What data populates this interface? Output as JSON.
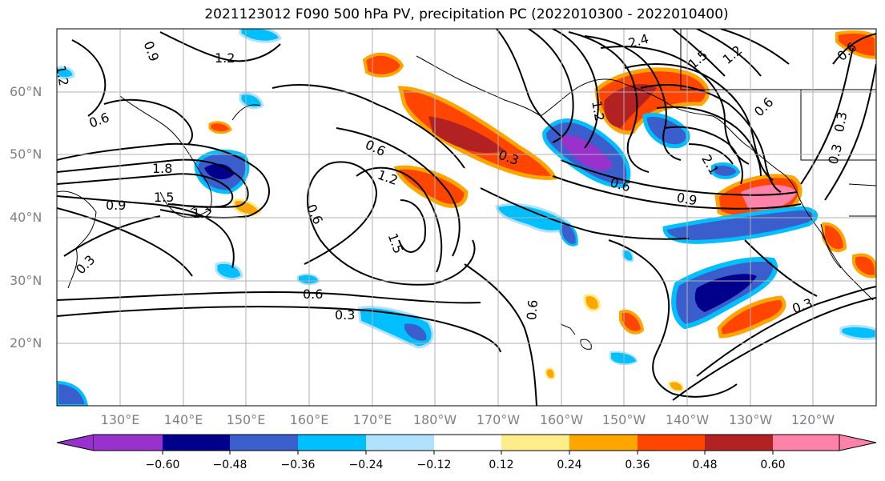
{
  "title": "2021123012 F090 500 hPa PV, precipitation PC (2022010300 - 2022010400)",
  "map": {
    "lat_labels": [
      "60°N",
      "50°N",
      "40°N",
      "30°N",
      "20°N"
    ],
    "lon_labels": [
      "130°E",
      "140°E",
      "150°E",
      "160°E",
      "170°E",
      "180°W",
      "170°W",
      "160°W",
      "150°W",
      "140°W",
      "130°W",
      "120°W"
    ],
    "contour_labels": [
      "1.2",
      "0.9",
      "1.2",
      "0.6",
      "1.8",
      "1.5",
      "1.2",
      "0.9",
      "0.6",
      "1.2",
      "1.5",
      "0.6",
      "0.6",
      "0.3",
      "0.3",
      "0.6",
      "0.3",
      "0.3",
      "0.6",
      "0.9",
      "2.1",
      "0.6",
      "2.4",
      "1.5",
      "1.2",
      "0.6",
      "1.2",
      "0.3",
      "0.3"
    ]
  },
  "colorbar": {
    "ticks": [
      "−0.60",
      "−0.48",
      "−0.36",
      "−0.24",
      "−0.12",
      "0.12",
      "0.24",
      "0.36",
      "0.48",
      "0.60"
    ],
    "colors": [
      "#9932cc",
      "#00008b",
      "#3a5fcd",
      "#00bfff",
      "#b0e2ff",
      "#ffffff",
      "#ffec8b",
      "#ffa500",
      "#ff4500",
      "#b22222",
      "#ff82ab"
    ]
  }
}
